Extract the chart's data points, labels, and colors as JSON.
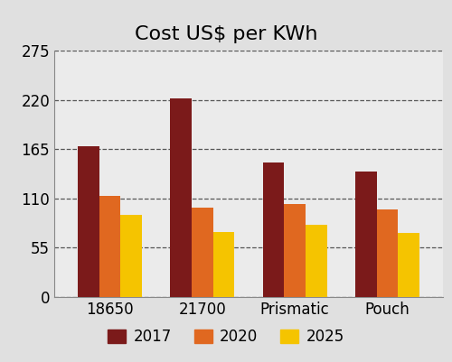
{
  "title": "Cost US$ per KWh",
  "categories": [
    "18650",
    "21700",
    "Prismatic",
    "Pouch"
  ],
  "series": {
    "2017": [
      168,
      222,
      150,
      140
    ],
    "2020": [
      113,
      100,
      104,
      98
    ],
    "2025": [
      92,
      72,
      80,
      71
    ]
  },
  "colors": {
    "2017": "#7B1A1A",
    "2020": "#E06820",
    "2025": "#F5C400"
  },
  "legend_labels": [
    "2017",
    "2020",
    "2025"
  ],
  "ylim": [
    0,
    275
  ],
  "yticks": [
    0,
    55,
    110,
    165,
    220,
    275
  ],
  "ytick_labels": [
    "0",
    "55",
    "110",
    "165",
    "220",
    "275"
  ],
  "background_color": "#E0E0E0",
  "plot_bg_color": "#EBEBEB",
  "grid_color": "#555555",
  "bar_width": 0.23,
  "title_fontsize": 16
}
